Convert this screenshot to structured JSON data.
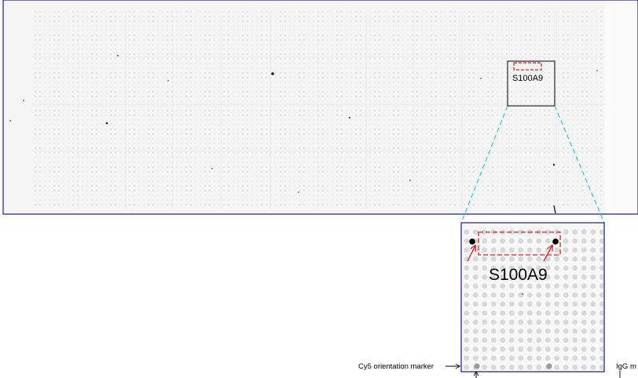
{
  "figure": {
    "overview_label": "S100A9",
    "zoom_label": "S100A9",
    "cy5_label": "Cy5 orientation marker",
    "igg_label": "IgG m",
    "colors": {
      "frame": "#2b2b8f",
      "connector": "#33ccdd",
      "highlight": "#e02020",
      "spot": "#d6d6d6",
      "target_spot": "#000000",
      "background": "#f4f4f4"
    }
  }
}
